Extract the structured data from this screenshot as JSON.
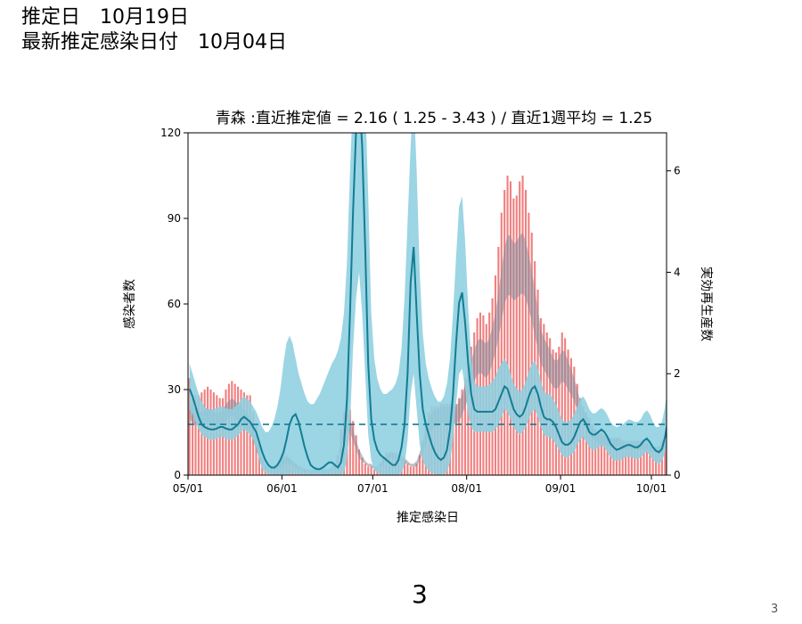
{
  "header": {
    "estimate_date_label": "推定日",
    "estimate_date_value": "10月19日",
    "latest_infection_label": "最新推定感染日付",
    "latest_infection_value": "10月04日"
  },
  "slide_number": "3",
  "corner_number": "3",
  "colors": {
    "bars": "#f08080",
    "bar_band": "#888899",
    "rt_band": "#8ecfe0",
    "rt_line": "#137d94",
    "reference_line": "#137d94"
  },
  "chart_data": {
    "type": "bar",
    "title": "青森 :直近推定値 = 2.16 ( 1.25 - 3.43 ) / 直近1週平均 = 1.25",
    "xlabel": "推定感染日",
    "ylabel_left": "感染者数",
    "ylabel_right": "実効再生産数",
    "x_start": "05/01",
    "x_end": "10/06",
    "xticks": [
      "05/01",
      "06/01",
      "07/01",
      "08/01",
      "09/01",
      "10/01"
    ],
    "xtick_days": [
      0,
      31,
      61,
      92,
      123,
      153
    ],
    "ylim_left": [
      0,
      120
    ],
    "yticks_left": [
      "0",
      "30",
      "60",
      "90",
      "120"
    ],
    "ylim_right": [
      0,
      6.75
    ],
    "yticks_right": [
      "0",
      "2",
      "4",
      "6"
    ],
    "reference_line_rt": 1.0,
    "series": [
      {
        "kind": "bar",
        "values": [
          34,
          28,
          28,
          28,
          29,
          30,
          31,
          30,
          29,
          28,
          27,
          27,
          30,
          32,
          33,
          32,
          31,
          30,
          29,
          28,
          28,
          22,
          18,
          12,
          6,
          3,
          2,
          2,
          3,
          4,
          6,
          7,
          7,
          6,
          5,
          4,
          3,
          2,
          2,
          1,
          1,
          1,
          1,
          1,
          1,
          1,
          1,
          2,
          3,
          7,
          16,
          22,
          26,
          23,
          19,
          14,
          9,
          6,
          4,
          3,
          3,
          2,
          2,
          4,
          6,
          8,
          8,
          8,
          7,
          7,
          6,
          5,
          4,
          3,
          3,
          4,
          7,
          12,
          17,
          22,
          24,
          24,
          24,
          25,
          25,
          25,
          25,
          25,
          25,
          27,
          30,
          34,
          40,
          45,
          50,
          55,
          57,
          56,
          53,
          57,
          62,
          70,
          80,
          92,
          100,
          105,
          103,
          97,
          98,
          103,
          105,
          100,
          92,
          85,
          75,
          65,
          55,
          53,
          50,
          48,
          44,
          43,
          45,
          50,
          48,
          44,
          41,
          38,
          32,
          27,
          24,
          22,
          20,
          18,
          16,
          15,
          15,
          14,
          13,
          13,
          13,
          13,
          13,
          12,
          11,
          11,
          12,
          12,
          12,
          12,
          12,
          11,
          10,
          9,
          9,
          10,
          12,
          12,
          16
        ],
        "band_upper": [
          26,
          24,
          23,
          22,
          22,
          23,
          23,
          23,
          22,
          22,
          22,
          23,
          25,
          26,
          27,
          26,
          25,
          24,
          23,
          22,
          20,
          17,
          13,
          9,
          6,
          4,
          3,
          3,
          3,
          4,
          5,
          6,
          6,
          6,
          5,
          4,
          3,
          3,
          2,
          2,
          2,
          2,
          2,
          2,
          2,
          2,
          2,
          3,
          4,
          7,
          12,
          18,
          22,
          20,
          16,
          12,
          9,
          7,
          5,
          4,
          4,
          3,
          3,
          4,
          6,
          7,
          8,
          8,
          8,
          7,
          7,
          6,
          5,
          4,
          4,
          5,
          8,
          12,
          16,
          20,
          22,
          23,
          23,
          24,
          24,
          24,
          24,
          24,
          24,
          26,
          28,
          32,
          36,
          40,
          44,
          47,
          48,
          47,
          46,
          48,
          52,
          57,
          64,
          72,
          80,
          84,
          84,
          81,
          82,
          84,
          85,
          82,
          77,
          72,
          65,
          58,
          51,
          48,
          46,
          44,
          41,
          40,
          41,
          44,
          43,
          40,
          37,
          34,
          30,
          26,
          23,
          21,
          19,
          17,
          16,
          15,
          14,
          14,
          13,
          13,
          13,
          13,
          13,
          12,
          12,
          12,
          12,
          12,
          12,
          12,
          12,
          12,
          11,
          10,
          10,
          10,
          11,
          12,
          14
        ],
        "band_lower": [
          20,
          18,
          18,
          17,
          17,
          18,
          18,
          18,
          17,
          17,
          17,
          18,
          19,
          20,
          21,
          20,
          19,
          18,
          17,
          16,
          15,
          12,
          9,
          6,
          4,
          2,
          2,
          2,
          2,
          2,
          3,
          4,
          4,
          4,
          3,
          3,
          2,
          2,
          1,
          1,
          1,
          1,
          1,
          1,
          1,
          1,
          1,
          2,
          3,
          5,
          9,
          13,
          16,
          15,
          12,
          9,
          6,
          5,
          4,
          3,
          3,
          2,
          2,
          3,
          4,
          5,
          6,
          6,
          6,
          5,
          5,
          4,
          4,
          3,
          3,
          3,
          5,
          8,
          11,
          14,
          16,
          17,
          17,
          18,
          18,
          18,
          18,
          18,
          18,
          19,
          21,
          24,
          27,
          30,
          33,
          35,
          36,
          35,
          34,
          36,
          39,
          43,
          48,
          54,
          60,
          63,
          63,
          61,
          62,
          63,
          64,
          62,
          58,
          54,
          49,
          44,
          39,
          37,
          35,
          33,
          31,
          30,
          31,
          33,
          32,
          30,
          28,
          26,
          23,
          20,
          18,
          16,
          15,
          13,
          12,
          11,
          11,
          11,
          10,
          10,
          10,
          10,
          10,
          9,
          9,
          9,
          9,
          9,
          9,
          9,
          9,
          9,
          8,
          8,
          8,
          8,
          8,
          9,
          10
        ]
      },
      {
        "kind": "line",
        "name": "実効再生産数",
        "values": [
          1.7,
          1.55,
          1.35,
          1.15,
          1.0,
          0.95,
          0.92,
          0.9,
          0.9,
          0.92,
          0.95,
          0.95,
          0.92,
          0.9,
          0.9,
          0.95,
          1.0,
          1.1,
          1.15,
          1.1,
          1.05,
          0.95,
          0.85,
          0.65,
          0.45,
          0.3,
          0.2,
          0.15,
          0.15,
          0.2,
          0.3,
          0.45,
          0.7,
          1.0,
          1.15,
          1.2,
          1.05,
          0.8,
          0.55,
          0.35,
          0.2,
          0.15,
          0.12,
          0.12,
          0.15,
          0.2,
          0.25,
          0.25,
          0.2,
          0.15,
          0.25,
          0.6,
          1.5,
          3.2,
          5.2,
          6.8,
          7.5,
          6.5,
          4.5,
          2.2,
          1.1,
          0.7,
          0.5,
          0.4,
          0.35,
          0.3,
          0.25,
          0.2,
          0.2,
          0.3,
          0.55,
          1.0,
          2.0,
          3.8,
          4.5,
          3.2,
          2.0,
          1.3,
          1.0,
          0.8,
          0.6,
          0.45,
          0.35,
          0.3,
          0.35,
          0.5,
          0.9,
          1.6,
          2.6,
          3.4,
          3.6,
          3.0,
          2.2,
          1.6,
          1.3,
          1.25,
          1.25,
          1.25,
          1.25,
          1.25,
          1.25,
          1.3,
          1.45,
          1.6,
          1.75,
          1.7,
          1.5,
          1.3,
          1.2,
          1.15,
          1.2,
          1.35,
          1.55,
          1.7,
          1.75,
          1.6,
          1.35,
          1.15,
          1.1,
          1.1,
          1.05,
          0.95,
          0.8,
          0.65,
          0.6,
          0.6,
          0.65,
          0.75,
          0.9,
          1.05,
          1.1,
          1.0,
          0.85,
          0.8,
          0.8,
          0.85,
          0.9,
          0.85,
          0.75,
          0.62,
          0.55,
          0.5,
          0.52,
          0.55,
          0.58,
          0.6,
          0.58,
          0.55,
          0.55,
          0.6,
          0.68,
          0.72,
          0.65,
          0.55,
          0.48,
          0.45,
          0.52,
          0.75,
          1.1,
          1.5,
          1.85,
          2.05,
          2.16
        ],
        "band_upper": [
          2.2,
          2.0,
          1.8,
          1.6,
          1.45,
          1.35,
          1.3,
          1.3,
          1.3,
          1.32,
          1.35,
          1.35,
          1.32,
          1.3,
          1.3,
          1.35,
          1.4,
          1.5,
          1.55,
          1.5,
          1.45,
          1.35,
          1.25,
          1.1,
          0.95,
          0.85,
          0.85,
          0.95,
          1.1,
          1.35,
          1.7,
          2.2,
          2.6,
          2.75,
          2.6,
          2.3,
          2.0,
          1.8,
          1.6,
          1.45,
          1.4,
          1.4,
          1.5,
          1.6,
          1.75,
          1.9,
          2.05,
          2.2,
          2.3,
          2.45,
          2.7,
          3.2,
          4.2,
          6.0,
          7.5,
          7.5,
          7.5,
          7.5,
          7.5,
          5.5,
          3.2,
          2.3,
          1.9,
          1.7,
          1.6,
          1.6,
          1.65,
          1.7,
          1.8,
          2.0,
          2.5,
          3.5,
          5.0,
          6.5,
          7.5,
          6.0,
          4.0,
          2.8,
          2.2,
          1.9,
          1.7,
          1.55,
          1.45,
          1.45,
          1.55,
          1.8,
          2.3,
          3.2,
          4.3,
          5.3,
          5.5,
          4.6,
          3.3,
          2.3,
          1.85,
          1.75,
          1.75,
          1.75,
          1.75,
          1.8,
          1.85,
          1.95,
          2.1,
          2.2,
          2.3,
          2.2,
          2.0,
          1.8,
          1.7,
          1.65,
          1.7,
          1.85,
          2.05,
          2.2,
          2.25,
          2.1,
          1.85,
          1.65,
          1.6,
          1.6,
          1.5,
          1.4,
          1.25,
          1.1,
          1.05,
          1.05,
          1.1,
          1.2,
          1.35,
          1.5,
          1.55,
          1.45,
          1.3,
          1.22,
          1.22,
          1.28,
          1.32,
          1.28,
          1.18,
          1.05,
          0.98,
          0.95,
          0.97,
          1.0,
          1.05,
          1.1,
          1.08,
          1.05,
          1.05,
          1.1,
          1.22,
          1.28,
          1.2,
          1.05,
          0.95,
          0.95,
          1.05,
          1.35,
          1.8,
          2.3,
          2.7,
          3.0,
          3.43
        ],
        "band_lower": [
          1.3,
          1.2,
          1.05,
          0.9,
          0.8,
          0.75,
          0.72,
          0.7,
          0.7,
          0.72,
          0.75,
          0.75,
          0.72,
          0.7,
          0.7,
          0.72,
          0.78,
          0.85,
          0.9,
          0.85,
          0.8,
          0.7,
          0.55,
          0.3,
          0.12,
          0.05,
          0.02,
          0.01,
          0.01,
          0.01,
          0.01,
          0.01,
          0.01,
          0.02,
          0.03,
          0.02,
          0.01,
          0.01,
          0.0,
          0.0,
          0.0,
          0.0,
          0.0,
          0.0,
          0.0,
          0.0,
          0.0,
          0.0,
          0.0,
          0.0,
          0.0,
          0.05,
          0.3,
          1.0,
          2.5,
          3.5,
          4.0,
          3.2,
          2.0,
          0.8,
          0.3,
          0.1,
          0.05,
          0.02,
          0.01,
          0.01,
          0.0,
          0.0,
          0.0,
          0.0,
          0.05,
          0.2,
          0.7,
          1.6,
          2.0,
          1.3,
          0.6,
          0.3,
          0.15,
          0.08,
          0.05,
          0.02,
          0.01,
          0.01,
          0.02,
          0.06,
          0.25,
          0.7,
          1.4,
          2.0,
          2.1,
          1.7,
          1.2,
          0.95,
          0.85,
          0.85,
          0.85,
          0.85,
          0.85,
          0.85,
          0.85,
          0.9,
          1.0,
          1.15,
          1.3,
          1.25,
          1.1,
          0.95,
          0.85,
          0.8,
          0.85,
          0.95,
          1.1,
          1.25,
          1.3,
          1.15,
          0.95,
          0.8,
          0.75,
          0.75,
          0.7,
          0.6,
          0.5,
          0.4,
          0.35,
          0.35,
          0.4,
          0.45,
          0.6,
          0.7,
          0.75,
          0.65,
          0.55,
          0.5,
          0.5,
          0.55,
          0.58,
          0.55,
          0.45,
          0.35,
          0.3,
          0.28,
          0.3,
          0.32,
          0.35,
          0.37,
          0.35,
          0.32,
          0.32,
          0.35,
          0.42,
          0.45,
          0.38,
          0.3,
          0.25,
          0.22,
          0.28,
          0.45,
          0.7,
          1.0,
          1.25,
          1.45,
          1.25
        ]
      }
    ]
  }
}
